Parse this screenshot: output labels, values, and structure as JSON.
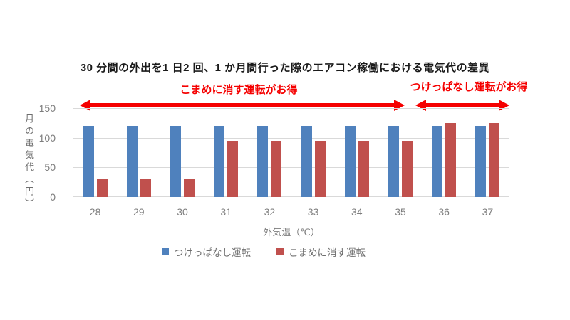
{
  "title": "30 分間の外出を1 日2 回、1 か月間行った際のエアコン稼働における電気代の差異",
  "annotations": {
    "left": {
      "label": "こまめに消す運転がお得",
      "arrow_span_celsius": [
        28,
        35
      ]
    },
    "right": {
      "label": "つけっぱなし運転がお得",
      "arrow_span_celsius": [
        36,
        37
      ]
    },
    "arrow_color": "#F50000"
  },
  "chart_data": {
    "type": "bar",
    "title": "30 分間の外出を1 日2 回、1 か月間行った際のエアコン稼働における電気代の差異",
    "categories": [
      "28",
      "29",
      "30",
      "31",
      "32",
      "33",
      "34",
      "35",
      "36",
      "37"
    ],
    "series": [
      {
        "name": "つけっぱなし運転",
        "color": "#4F81BD",
        "values": [
          120,
          120,
          120,
          120,
          120,
          120,
          120,
          120,
          120,
          120
        ]
      },
      {
        "name": "こまめに消す運転",
        "color": "#C0504D",
        "values": [
          30,
          30,
          30,
          95,
          95,
          95,
          95,
          95,
          125,
          125
        ]
      }
    ],
    "xlabel": "外気温（℃）",
    "ylabel": "月の電気代（円）",
    "ylim": [
      0,
      150
    ],
    "yticks": [
      0,
      50,
      100,
      150
    ],
    "grid": true,
    "legend_position": "bottom"
  },
  "colors": {
    "grid": "#D9D9D9",
    "tick_text": "#7D7D7D",
    "axis_title_text": "#6E6E6E",
    "title_text": "#1A1A1A",
    "background": "#FFFFFF"
  }
}
